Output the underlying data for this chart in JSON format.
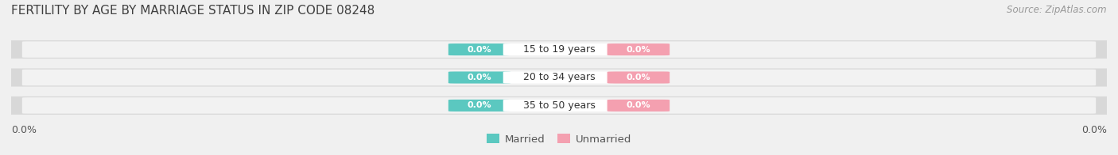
{
  "title": "FERTILITY BY AGE BY MARRIAGE STATUS IN ZIP CODE 08248",
  "source": "Source: ZipAtlas.com",
  "categories": [
    "15 to 19 years",
    "20 to 34 years",
    "35 to 50 years"
  ],
  "married_values": [
    0.0,
    0.0,
    0.0
  ],
  "unmarried_values": [
    0.0,
    0.0,
    0.0
  ],
  "married_color": "#5BC8C0",
  "unmarried_color": "#F4A0B0",
  "bar_height": 0.62,
  "bar_gap": 0.08,
  "xlim": [
    -1,
    1
  ],
  "title_fontsize": 11,
  "source_fontsize": 8.5,
  "label_fontsize": 9,
  "value_fontsize": 8,
  "legend_fontsize": 9.5,
  "axis_label_left": "0.0%",
  "axis_label_right": "0.0%",
  "bg_color": "#F0F0F0",
  "bar_outer_color": "#D8D8D8",
  "bar_inner_color": "#F2F2F2"
}
